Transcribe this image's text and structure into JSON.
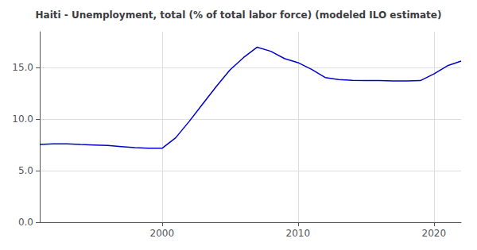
{
  "chart_data": {
    "type": "line",
    "title": "Haiti - Unemployment, total (% of total labor force) (modeled ILO estimate)",
    "x": [
      1991,
      1992,
      1993,
      1994,
      1995,
      1996,
      1997,
      1998,
      1999,
      2000,
      2001,
      2002,
      2003,
      2004,
      2005,
      2006,
      2007,
      2008,
      2009,
      2010,
      2011,
      2012,
      2013,
      2014,
      2015,
      2016,
      2017,
      2018,
      2019,
      2020,
      2021,
      2022
    ],
    "values": [
      7.55,
      7.62,
      7.62,
      7.55,
      7.5,
      7.45,
      7.35,
      7.25,
      7.18,
      7.18,
      8.2,
      9.8,
      11.5,
      13.2,
      14.8,
      16.0,
      17.0,
      16.6,
      15.9,
      15.5,
      14.85,
      14.05,
      13.85,
      13.78,
      13.75,
      13.75,
      13.72,
      13.72,
      13.75,
      14.4,
      15.2,
      15.65
    ],
    "color": "#0000cc",
    "xlim": [
      1991,
      2022
    ],
    "xticks": [
      2000,
      2010,
      2020
    ],
    "ylim": [
      0,
      18.5
    ],
    "yticks": [
      {
        "value": 0.0,
        "label": "0.0"
      },
      {
        "value": 5.0,
        "label": "5.0"
      },
      {
        "value": 10.0,
        "label": "10.0"
      },
      {
        "value": 15.0,
        "label": "15.0"
      }
    ],
    "grid": true
  }
}
